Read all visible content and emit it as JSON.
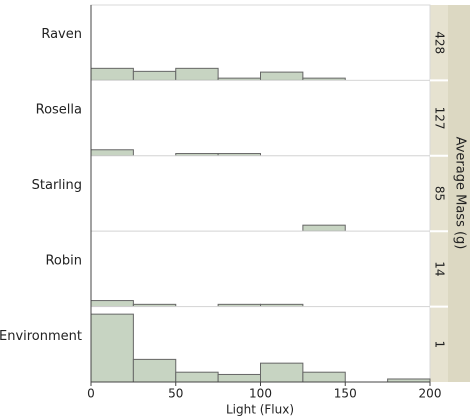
{
  "chart_data": {
    "type": "histogram",
    "xlabel": "Light (Flux)",
    "strip_label": "Average Mass (g)",
    "bins": [
      0,
      25,
      50,
      75,
      100,
      125,
      150,
      175,
      200
    ],
    "xlim": [
      0,
      200
    ],
    "xticks": [
      0,
      50,
      100,
      150,
      200
    ],
    "ylim": [
      0,
      10
    ],
    "color": "#c7d4c2",
    "facets": [
      {
        "name": "Raven",
        "mass": "428",
        "values": [
          1.6,
          1.2,
          1.6,
          0.3,
          1.1,
          0.3,
          0,
          0
        ]
      },
      {
        "name": "Rosella",
        "mass": "127",
        "values": [
          0.8,
          0,
          0.3,
          0.3,
          0,
          0,
          0,
          0
        ]
      },
      {
        "name": "Starling",
        "mass": "85",
        "values": [
          0,
          0,
          0,
          0,
          0,
          0.8,
          0,
          0
        ]
      },
      {
        "name": "Robin",
        "mass": "14",
        "values": [
          0.8,
          0.3,
          0,
          0.3,
          0.3,
          0,
          0,
          0
        ]
      },
      {
        "name": "Environment",
        "mass": "1",
        "values": [
          9,
          3,
          1.3,
          1,
          2.5,
          1.3,
          0,
          0.4
        ]
      }
    ]
  }
}
